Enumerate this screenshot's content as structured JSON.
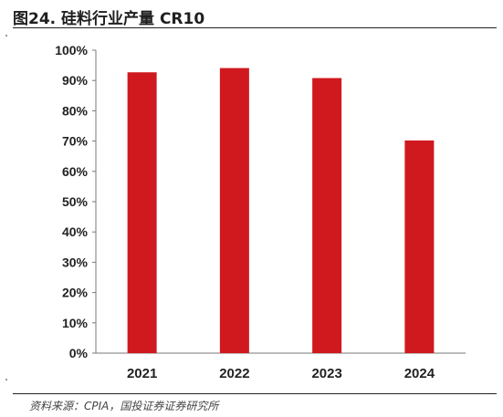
{
  "title": "图24. 硅料行业产量 CR10",
  "source": "资料来源：CPIA，国投证券证券研究所",
  "chart_data": {
    "type": "bar",
    "categories": [
      "2021",
      "2022",
      "2023",
      "2024"
    ],
    "values": [
      92.7,
      94.1,
      90.8,
      70.2
    ],
    "ylim": [
      0,
      100
    ],
    "yticks": [
      "0%",
      "10%",
      "20%",
      "30%",
      "40%",
      "50%",
      "60%",
      "70%",
      "80%",
      "90%",
      "100%"
    ],
    "bar_color": "#D0191E",
    "title": "",
    "xlabel": "",
    "ylabel": "",
    "grid": false
  }
}
